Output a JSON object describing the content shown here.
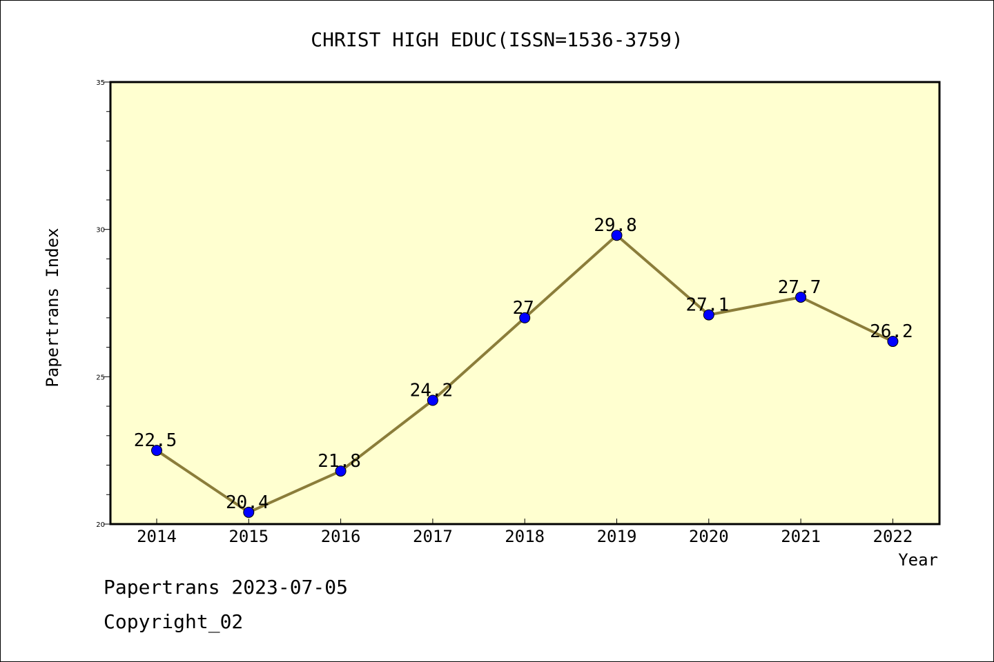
{
  "chart_data": {
    "type": "line",
    "title": "CHRIST HIGH EDUC(ISSN=1536-3759)",
    "xlabel": "Year",
    "ylabel": "Papertrans Index",
    "categories": [
      "2014",
      "2015",
      "2016",
      "2017",
      "2018",
      "2019",
      "2020",
      "2021",
      "2022"
    ],
    "values": [
      22.5,
      20.4,
      21.8,
      24.2,
      27,
      29.8,
      27.1,
      27.7,
      26.2
    ],
    "data_labels": [
      "22.5",
      "20.4",
      "21.8",
      "24.2",
      "27",
      "29.8",
      "27.1",
      "27.7",
      "26.2"
    ],
    "ylim": [
      20,
      35
    ],
    "y_ticks": [
      20,
      25,
      30,
      35
    ],
    "y_minor_step": 1,
    "grid": false,
    "colors": {
      "plot_background": "#ffffd0",
      "line": "#8b7d3a",
      "marker": "#0000ff",
      "axis": "#000000"
    }
  },
  "footer": {
    "date_line": "Papertrans 2023-07-05",
    "copyright": "Copyright_02"
  }
}
